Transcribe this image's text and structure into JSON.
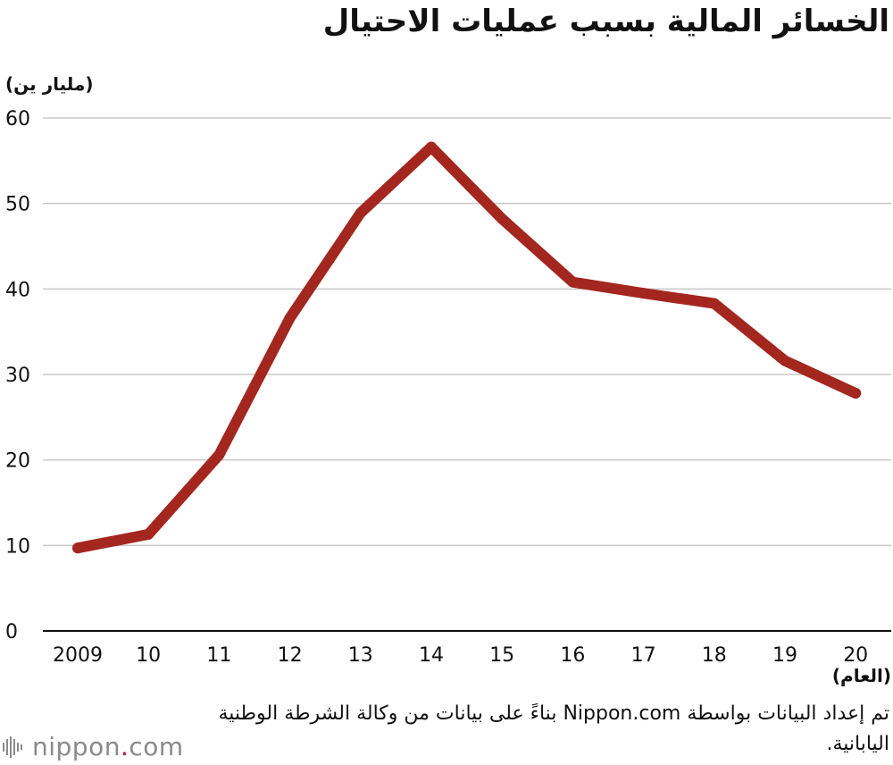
{
  "title": "الخسائر المالية بسبب عمليات الاحتيال",
  "y_unit": "(مليار ين)",
  "x_unit": "(العام)",
  "source": "تم إعداد البيانات بواسطة Nippon.com بناءً على بيانات من وكالة الشرطة الوطنية اليابانية.",
  "logo": {
    "name": "nippon",
    "dot": ".",
    "suffix": "com",
    "icon": "nippon-logo-icon"
  },
  "colors": {
    "line": "#a3271f",
    "grid": "#c8c8c8",
    "axis": "#111111",
    "logo_dot": "#c8102e"
  },
  "chart_data": {
    "type": "line",
    "categories": [
      "2009",
      "10",
      "11",
      "12",
      "13",
      "14",
      "15",
      "16",
      "17",
      "18",
      "19",
      "20"
    ],
    "series": [
      {
        "values": [
          9.7,
          11.3,
          20.6,
          36.6,
          48.9,
          56.6,
          48.2,
          40.8,
          39.5,
          38.3,
          31.6,
          27.8
        ]
      }
    ],
    "yticks": [
      0,
      10,
      20,
      30,
      40,
      50,
      60
    ],
    "ylim": [
      0,
      60
    ],
    "grid": true,
    "legend": "none"
  }
}
